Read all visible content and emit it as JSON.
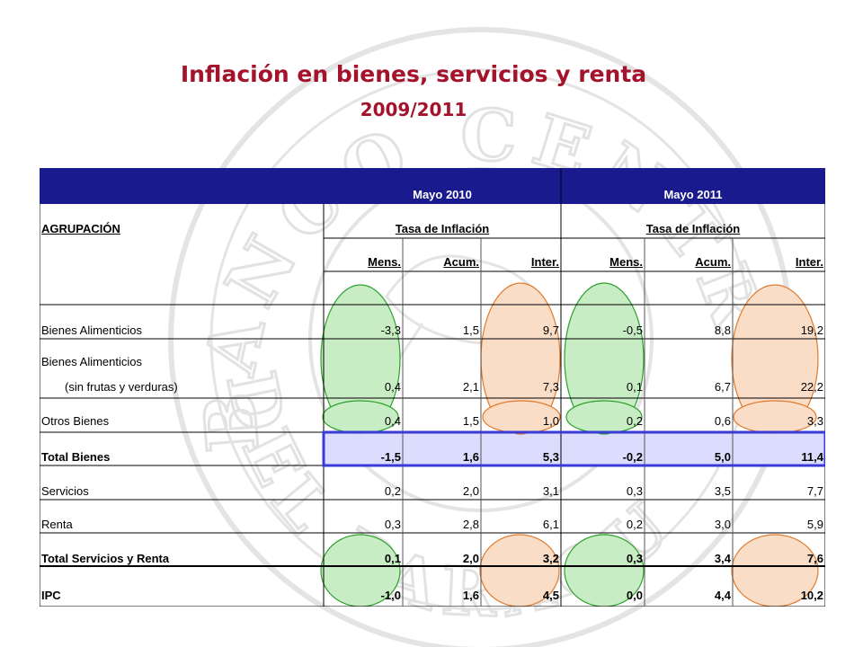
{
  "title": "Inflación en bienes, servicios y renta",
  "subtitle": "2009/2011",
  "colors": {
    "title": "#a3132b",
    "header_band": "#1a1a8f",
    "green_ellipse": "#c8ecc4",
    "orange_ellipse": "#f9ddc7",
    "highlight_row": "#dcdcff"
  },
  "header": {
    "period_1": "Mayo 2010",
    "period_2": "Mayo 2011",
    "group_label": "AGRUPACIÓN",
    "rate_label_1": "Tasa de Inflación",
    "rate_label_2": "Tasa de Inflación",
    "columns": [
      "Mens.",
      "Acum.",
      "Inter.",
      "Mens.",
      "Acum.",
      "Inter."
    ]
  },
  "rows": [
    {
      "label": "Bienes Alimenticios",
      "values": [
        "-3,3",
        "1,5",
        "9,7",
        "-0,5",
        "8,8",
        "19,2"
      ]
    },
    {
      "label": "Bienes Alimenticios",
      "label2": "(sin frutas y verduras)",
      "values": [
        "0,4",
        "2,1",
        "7,3",
        "0,1",
        "6,7",
        "22,2"
      ]
    },
    {
      "label": "Otros  Bienes",
      "values": [
        "0,4",
        "1,5",
        "1,0",
        "0,2",
        "0,6",
        "3,3"
      ]
    },
    {
      "label": "Total Bienes",
      "values": [
        "-1,5",
        "1,6",
        "5,3",
        "-0,2",
        "5,0",
        "11,4"
      ]
    },
    {
      "label": "Servicios",
      "values": [
        "0,2",
        "2,0",
        "3,1",
        "0,3",
        "3,5",
        "7,7"
      ]
    },
    {
      "label": "Renta",
      "values": [
        "0,3",
        "2,8",
        "6,1",
        "0,2",
        "3,0",
        "5,9"
      ]
    },
    {
      "label": "Total Servicios y Renta",
      "values": [
        "0,1",
        "2,0",
        "3,2",
        "0,3",
        "3,4",
        "7,6"
      ]
    },
    {
      "label": "IPC",
      "values": [
        "-1,0",
        "1,6",
        "4,5",
        "0,0",
        "4,4",
        "10,2"
      ]
    }
  ],
  "watermark": {
    "text_top": "BANCO CENTRAL",
    "text_bottom": "DEL PARAGUAY"
  }
}
